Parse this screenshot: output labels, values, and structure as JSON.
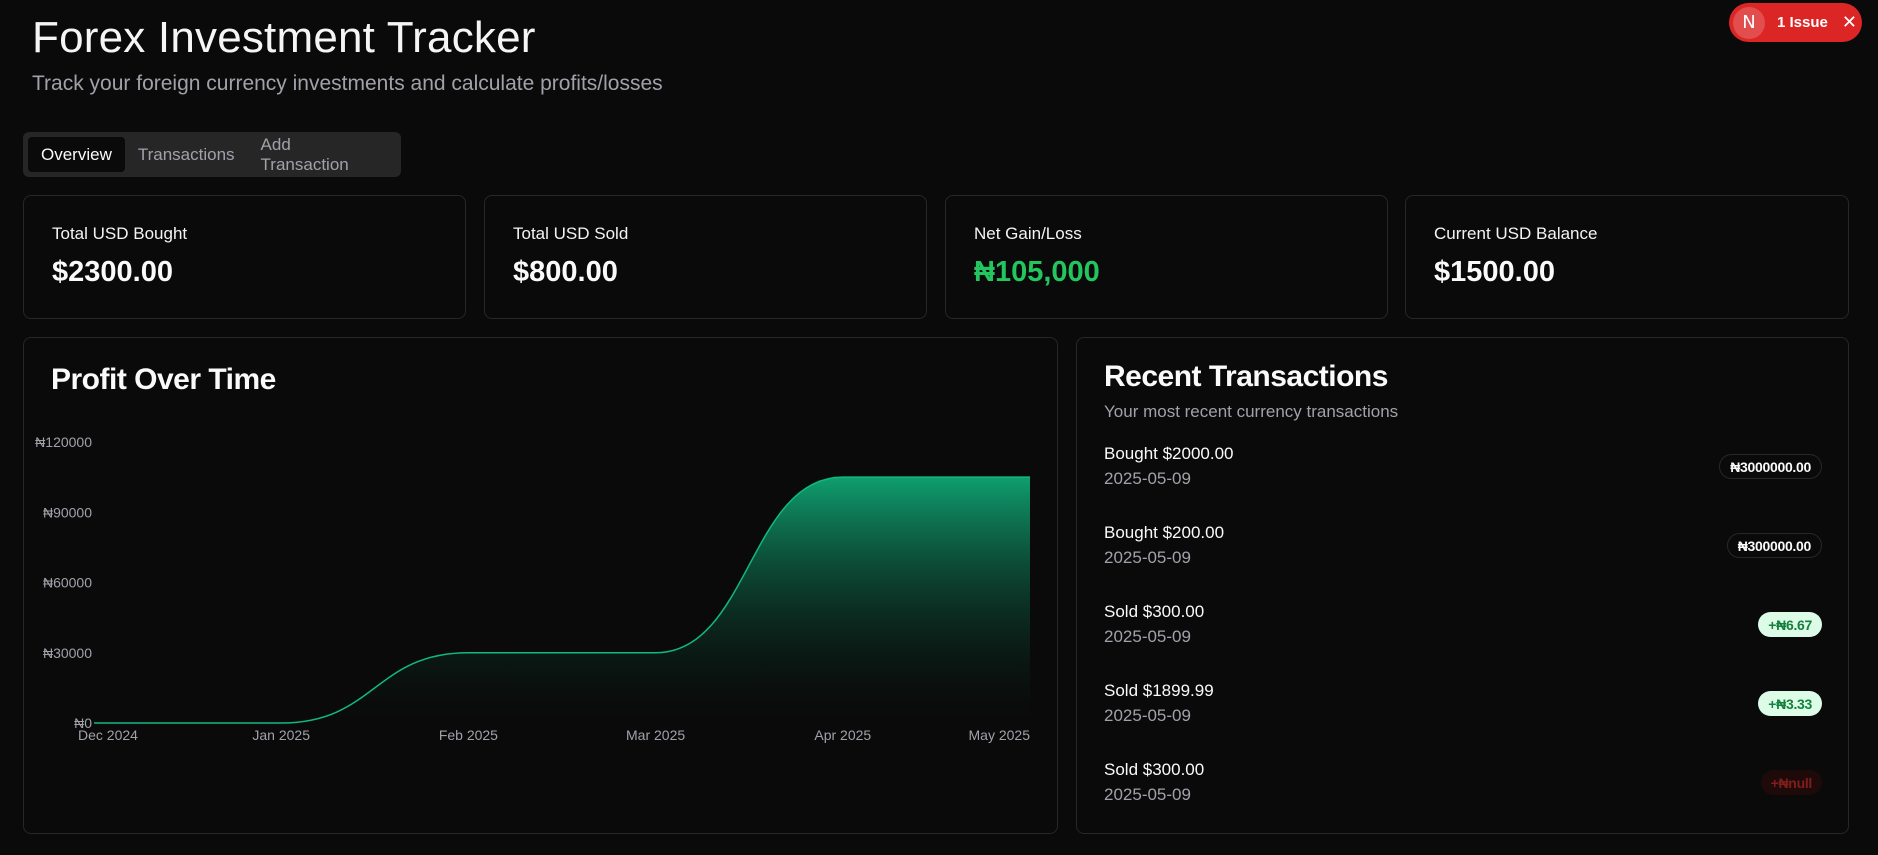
{
  "app": {
    "title": "Forex Investment Tracker",
    "subtitle": "Track your foreign currency investments and calculate profits/losses"
  },
  "dev_overlay": {
    "logo_letter": "N",
    "issues_label": "1 Issue",
    "close_symbol": "✕"
  },
  "tabs": [
    {
      "label": "Overview",
      "active": true
    },
    {
      "label": "Transactions",
      "active": false
    },
    {
      "label": "Add Transaction",
      "active": false
    }
  ],
  "stats": [
    {
      "label": "Total USD Bought",
      "value": "$2300.00"
    },
    {
      "label": "Total USD Sold",
      "value": "$800.00"
    },
    {
      "label": "Net Gain/Loss",
      "value": "₦105,000",
      "color": "#22c55e"
    },
    {
      "label": "Current USD Balance",
      "value": "$1500.00"
    }
  ],
  "profit_panel": {
    "title": "Profit Over Time"
  },
  "chart_data": {
    "type": "area",
    "title": "Profit Over Time",
    "x": [
      "Dec 2024",
      "Jan 2025",
      "Feb 2025",
      "Mar 2025",
      "Apr 2025",
      "May 2025"
    ],
    "series": [
      {
        "values": [
          0,
          0,
          30000,
          30000,
          105000,
          105000
        ]
      }
    ],
    "yticks": [
      "₦0",
      "₦30000",
      "₦60000",
      "₦90000",
      "₦120000"
    ],
    "ylim": [
      0,
      120000
    ],
    "grid": false,
    "colors": {
      "line": "#10b981",
      "fill_top": "#10b981",
      "fill_bottom": "#0a0a0a"
    }
  },
  "transactions_panel": {
    "title": "Recent Transactions",
    "description": "Your most recent currency transactions",
    "items": [
      {
        "description": "Bought $2000.00",
        "date": "2025-05-09",
        "badge": "₦3000000.00",
        "kind": "neutral"
      },
      {
        "description": "Bought $200.00",
        "date": "2025-05-09",
        "badge": "₦300000.00",
        "kind": "neutral"
      },
      {
        "description": "Sold $300.00",
        "date": "2025-05-09",
        "badge": "+₦6.67",
        "kind": "positive"
      },
      {
        "description": "Sold $1899.99",
        "date": "2025-05-09",
        "badge": "+₦3.33",
        "kind": "positive"
      },
      {
        "description": "Sold $300.00",
        "date": "2025-05-09",
        "badge": "+₦null",
        "kind": "negative"
      }
    ]
  }
}
